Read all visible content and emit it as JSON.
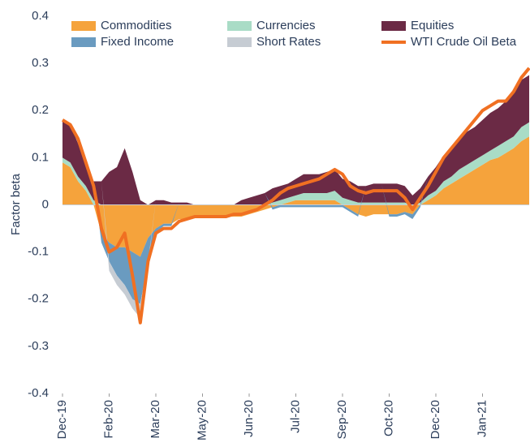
{
  "chart_data": {
    "type": "stacked-area-line",
    "y_label": "Factor beta",
    "x": [
      0,
      1,
      2,
      3,
      4,
      5,
      6,
      7,
      8,
      9,
      10,
      11,
      12,
      13,
      14,
      15,
      16,
      17,
      18,
      19,
      20,
      21,
      22,
      23,
      24,
      25,
      26,
      27,
      28,
      29,
      30,
      31,
      32,
      33,
      34,
      35,
      36,
      37,
      38,
      39,
      40,
      41,
      42,
      43,
      44,
      45,
      46,
      47,
      48,
      49,
      50,
      51,
      52,
      53,
      54,
      55,
      56,
      57,
      58,
      59,
      60
    ],
    "xlim": [
      0,
      60
    ],
    "xticks": [
      {
        "value": 0,
        "label": "Dec-19"
      },
      {
        "value": 6,
        "label": "Feb-20"
      },
      {
        "value": 12,
        "label": "Mar-20"
      },
      {
        "value": 18,
        "label": "May-20"
      },
      {
        "value": 24,
        "label": "Jun-20"
      },
      {
        "value": 30,
        "label": "Jul-20"
      },
      {
        "value": 36,
        "label": "Sep-20"
      },
      {
        "value": 42,
        "label": "Oct-20"
      },
      {
        "value": 48,
        "label": "Dec-20"
      },
      {
        "value": 54,
        "label": "Jan-21"
      }
    ],
    "ylim": [
      -0.4,
      0.4
    ],
    "yticks": [
      0.4,
      0.3,
      0.2,
      0.1,
      0,
      -0.1,
      -0.2,
      -0.3,
      -0.4
    ],
    "grid": false,
    "series": [
      {
        "name": "Commodities",
        "color": "#f5a33c",
        "kind": "area",
        "values": [
          0.09,
          0.08,
          0.05,
          0.03,
          0,
          -0.06,
          -0.08,
          -0.09,
          -0.09,
          -0.1,
          -0.11,
          -0.07,
          -0.05,
          -0.04,
          -0.04,
          -0.03,
          -0.03,
          -0.025,
          -0.025,
          -0.025,
          -0.025,
          -0.025,
          -0.025,
          -0.025,
          -0.02,
          -0.015,
          -0.01,
          -0.005,
          0,
          0.005,
          0.01,
          0.01,
          0.01,
          0.01,
          0.01,
          0.01,
          0,
          -0.01,
          -0.02,
          -0.025,
          -0.02,
          -0.02,
          -0.02,
          -0.02,
          -0.015,
          -0.02,
          0,
          0.01,
          0.02,
          0.035,
          0.045,
          0.055,
          0.065,
          0.075,
          0.085,
          0.095,
          0.1,
          0.11,
          0.12,
          0.135,
          0.145
        ]
      },
      {
        "name": "Currencies",
        "color": "#a9dcc6",
        "kind": "area",
        "values": [
          0.01,
          0.01,
          0.01,
          0.01,
          0.01,
          0,
          0,
          0,
          0,
          0,
          0,
          0,
          0,
          0,
          0,
          0,
          0,
          0,
          0,
          0,
          0,
          0,
          0,
          0,
          0,
          0,
          0,
          0.005,
          0.01,
          0.01,
          0.01,
          0.015,
          0.015,
          0.015,
          0.015,
          0.02,
          0.015,
          0.01,
          0.005,
          0.005,
          0.005,
          0.005,
          0.005,
          0.005,
          0.005,
          0,
          0.005,
          0.01,
          0.01,
          0.015,
          0.015,
          0.02,
          0.02,
          0.02,
          0.02,
          0.02,
          0.025,
          0.025,
          0.025,
          0.03,
          0.03
        ]
      },
      {
        "name": "Equities",
        "color": "#6b2a45",
        "kind": "area",
        "values": [
          0.08,
          0.08,
          0.07,
          0.05,
          0.04,
          0.05,
          0.07,
          0.08,
          0.12,
          0.07,
          0.01,
          0,
          0.01,
          0.01,
          0.005,
          0.005,
          0.005,
          0,
          0,
          0,
          0,
          0,
          0,
          0.01,
          0.015,
          0.02,
          0.025,
          0.03,
          0.03,
          0.03,
          0.035,
          0.04,
          0.04,
          0.04,
          0.045,
          0.045,
          0.04,
          0.04,
          0.035,
          0.035,
          0.04,
          0.04,
          0.04,
          0.04,
          0.035,
          0.02,
          0.03,
          0.04,
          0.05,
          0.055,
          0.06,
          0.065,
          0.07,
          0.07,
          0.075,
          0.08,
          0.08,
          0.085,
          0.09,
          0.1,
          0.1
        ]
      },
      {
        "name": "Fixed Income",
        "color": "#6a9bc0",
        "kind": "area",
        "values": [
          0,
          0,
          0,
          0,
          0,
          -0.02,
          -0.04,
          -0.06,
          -0.08,
          -0.1,
          -0.1,
          -0.05,
          -0.01,
          -0.005,
          -0.005,
          0,
          0,
          0,
          0,
          0,
          0,
          0,
          0,
          0,
          0,
          0,
          0,
          -0.005,
          -0.005,
          -0.005,
          -0.005,
          -0.005,
          -0.005,
          -0.005,
          -0.005,
          -0.005,
          -0.005,
          -0.005,
          -0.005,
          0,
          0,
          0,
          -0.005,
          -0.005,
          -0.005,
          -0.01,
          -0.005,
          0,
          0,
          0,
          0,
          0,
          0,
          0,
          0,
          0,
          0,
          0,
          0,
          0,
          0
        ]
      },
      {
        "name": "Short Rates",
        "color": "#c6ccd3",
        "kind": "area",
        "values": [
          0,
          0,
          0,
          0,
          0,
          0,
          -0.02,
          -0.02,
          -0.02,
          -0.02,
          -0.03,
          -0.01,
          0,
          0,
          0,
          0,
          0,
          0,
          0,
          0,
          0,
          0,
          0,
          0,
          0,
          0,
          0,
          0,
          0,
          0,
          0,
          0,
          0,
          0,
          0,
          0,
          0,
          0,
          0,
          0,
          0,
          0,
          0,
          0,
          0,
          0,
          0,
          0,
          0,
          0,
          0,
          0,
          0,
          0,
          0,
          0,
          0,
          0,
          0,
          0,
          0
        ]
      },
      {
        "name": "WTI Crude Oil Beta",
        "color": "#f07022",
        "kind": "line",
        "values": [
          0.18,
          0.17,
          0.14,
          0.09,
          0.04,
          -0.05,
          -0.1,
          -0.09,
          -0.06,
          -0.15,
          -0.25,
          -0.12,
          -0.06,
          -0.05,
          -0.05,
          -0.035,
          -0.03,
          -0.025,
          -0.025,
          -0.025,
          -0.025,
          -0.025,
          -0.02,
          -0.02,
          -0.015,
          -0.01,
          0,
          0.01,
          0.025,
          0.035,
          0.04,
          0.045,
          0.05,
          0.055,
          0.065,
          0.075,
          0.065,
          0.04,
          0.03,
          0.025,
          0.03,
          0.03,
          0.03,
          0.03,
          0.015,
          -0.01,
          0.015,
          0.04,
          0.07,
          0.1,
          0.12,
          0.14,
          0.16,
          0.18,
          0.2,
          0.21,
          0.22,
          0.22,
          0.24,
          0.27,
          0.29
        ]
      }
    ]
  }
}
